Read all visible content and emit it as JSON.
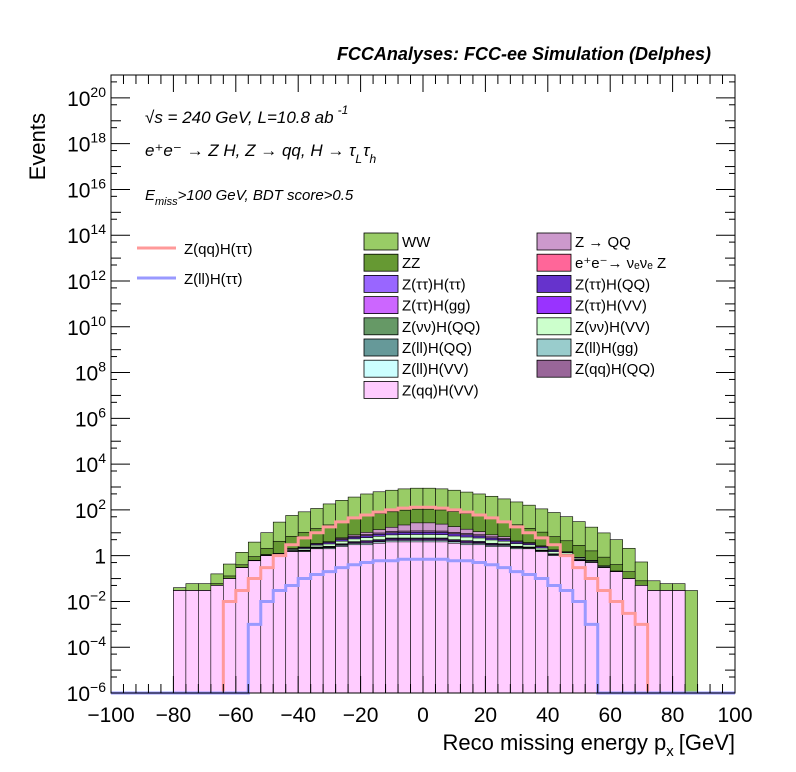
{
  "chart_data": {
    "type": "stacked-histogram",
    "title": "FCCAnalyses: FCC-ee Simulation (Delphes)",
    "xlabel": "Reco missing energy p",
    "xlabel_sub": "x",
    "xlabel_unit": "[GeV]",
    "ylabel": "Events",
    "xlim": [
      -100,
      100
    ],
    "ylim": [
      1e-06,
      1e+21
    ],
    "log_y": true,
    "x_ticks": [
      -100,
      -80,
      -60,
      -40,
      -20,
      0,
      20,
      40,
      60,
      80,
      100
    ],
    "x_tick_labels": [
      "−100",
      "−80",
      "−60",
      "−40",
      "−20",
      "0",
      "20",
      "40",
      "60",
      "80",
      "100"
    ],
    "y_ticks": [
      {
        "v": 1e-06,
        "base": "10",
        "exp": "−6"
      },
      {
        "v": 0.0001,
        "base": "10",
        "exp": "−4"
      },
      {
        "v": 0.01,
        "base": "10",
        "exp": "−2"
      },
      {
        "v": 1,
        "base": "1",
        "exp": ""
      },
      {
        "v": 100.0,
        "base": "10",
        "exp": "2"
      },
      {
        "v": 10000.0,
        "base": "10",
        "exp": "4"
      },
      {
        "v": 1000000.0,
        "base": "10",
        "exp": "6"
      },
      {
        "v": 100000000.0,
        "base": "10",
        "exp": "8"
      },
      {
        "v": 10000000000.0,
        "base": "10",
        "exp": "10"
      },
      {
        "v": 1000000000000.0,
        "base": "10",
        "exp": "12"
      },
      {
        "v": 100000000000000.0,
        "base": "10",
        "exp": "14"
      },
      {
        "v": 1e+16,
        "base": "10",
        "exp": "16"
      },
      {
        "v": 1e+18,
        "base": "10",
        "exp": "18"
      },
      {
        "v": 1e+20,
        "base": "10",
        "exp": "20"
      }
    ],
    "annotations": {
      "sqrt_s": "√s = 240 GeV, L=10.8 ab",
      "lumi_exp": "-1",
      "process": "e⁺e⁻ → Z H, Z  → qq, H  → τ",
      "process_sub1": "L",
      "process_tau2": "τ",
      "process_sub2": "h",
      "cut_e": "E",
      "cut_sub": "miss",
      "cut_rest": ">100 GeV, BDT score>0.5"
    },
    "legend": {
      "placement": "top",
      "signal": [
        {
          "name": "Z(qq)H(ττ)",
          "color": "#ff9999"
        },
        {
          "name": "Z(ll)H(ττ)",
          "color": "#9999ff"
        }
      ],
      "col1": [
        {
          "name": "WW",
          "color": "#99cc66"
        },
        {
          "name": "ZZ",
          "color": "#669933"
        },
        {
          "name": "Z(ττ)H(ττ)",
          "color": "#9966ff"
        },
        {
          "name": "Z(ττ)H(gg)",
          "color": "#cc66ff"
        },
        {
          "name": "Z(νν)H(QQ)",
          "color": "#669966"
        },
        {
          "name": "Z(ll)H(QQ)",
          "color": "#669999"
        },
        {
          "name": "Z(ll)H(VV)",
          "color": "#ccffff"
        },
        {
          "name": "Z(qq)H(VV)",
          "color": "#ffccff"
        }
      ],
      "col2": [
        {
          "name": "Z → QQ",
          "color": "#cc99cc"
        },
        {
          "name": "e⁺e⁻→ νₑνₑ Z",
          "color": "#ff6699"
        },
        {
          "name": "Z(ττ)H(QQ)",
          "color": "#6633cc"
        },
        {
          "name": "Z(ττ)H(VV)",
          "color": "#9933ff"
        },
        {
          "name": "Z(νν)H(VV)",
          "color": "#ccffcc"
        },
        {
          "name": "Z(ll)H(gg)",
          "color": "#99cccc"
        },
        {
          "name": "Z(qq)H(QQ)",
          "color": "#996699"
        }
      ]
    },
    "bin_edges": [
      -100,
      -96,
      -92,
      -88,
      -84,
      -80,
      -76,
      -72,
      -68,
      -64,
      -60,
      -56,
      -52,
      -48,
      -44,
      -40,
      -36,
      -32,
      -28,
      -24,
      -20,
      -16,
      -12,
      -8,
      -4,
      0,
      4,
      8,
      12,
      16,
      20,
      24,
      28,
      32,
      36,
      40,
      44,
      48,
      52,
      56,
      60,
      64,
      68,
      72,
      76,
      80,
      84,
      88,
      92,
      96,
      100
    ],
    "stack_totals": [
      0,
      0,
      0,
      0,
      0,
      0,
      0.03,
      0.03,
      0.1,
      0.3,
      1,
      3,
      10,
      30,
      55,
      80,
      120,
      180,
      260,
      360,
      500,
      620,
      720,
      820,
      880,
      880,
      820,
      720,
      600,
      500,
      400,
      300,
      220,
      160,
      110,
      75,
      50,
      30,
      18,
      10,
      5,
      2,
      0.5,
      0.05,
      0.03,
      0.03,
      0,
      0,
      0,
      0
    ],
    "layers": [
      {
        "name": "Z(qq)H(VV)",
        "color": "#ffccff",
        "values": [
          0,
          0,
          0,
          0,
          0,
          0.03,
          0.03,
          0.03,
          0.05,
          0.1,
          0.3,
          0.6,
          1,
          1,
          1.5,
          1.5,
          2,
          2,
          2.5,
          3,
          3,
          3.5,
          4,
          4,
          4,
          4,
          4,
          3.5,
          3,
          3,
          2.5,
          2.5,
          2,
          2,
          1.5,
          1,
          1,
          0.6,
          0.5,
          0.3,
          0.2,
          0.1,
          0.05,
          0.03,
          0.03,
          0.03,
          0,
          0,
          0,
          0
        ]
      },
      {
        "name": "Z(ll)H(VV)",
        "color": "#ccffff",
        "values": [
          0,
          0,
          0,
          0,
          0,
          0,
          0,
          0,
          0,
          0,
          0,
          0.01,
          0.03,
          0.05,
          0.08,
          0.1,
          0.15,
          0.2,
          0.3,
          0.4,
          0.5,
          0.5,
          0.6,
          0.6,
          0.6,
          0.6,
          0.6,
          0.5,
          0.5,
          0.4,
          0.3,
          0.3,
          0.2,
          0.15,
          0.1,
          0.08,
          0.05,
          0.03,
          0.02,
          0.01,
          0,
          0,
          0,
          0,
          0,
          0,
          0,
          0,
          0,
          0
        ]
      },
      {
        "name": "Z(ττ)H(gg)",
        "color": "#cc66ff",
        "values": [
          0,
          0,
          0,
          0,
          0,
          0,
          0,
          0,
          0,
          0,
          0,
          0,
          0.01,
          0.02,
          0.03,
          0.05,
          0.08,
          0.1,
          0.15,
          0.2,
          0.3,
          0.3,
          0.4,
          0.4,
          0.4,
          0.4,
          0.4,
          0.3,
          0.3,
          0.25,
          0.2,
          0.15,
          0.1,
          0.08,
          0.05,
          0.04,
          0.03,
          0.02,
          0.01,
          0.01,
          0,
          0,
          0,
          0,
          0,
          0,
          0,
          0,
          0,
          0
        ]
      },
      {
        "name": "Z(ττ)H(VV)",
        "color": "#9933ff",
        "values": [
          0,
          0,
          0,
          0,
          0,
          0,
          0,
          0,
          0,
          0,
          0,
          0,
          0.01,
          0.02,
          0.04,
          0.06,
          0.1,
          0.15,
          0.2,
          0.3,
          0.4,
          0.4,
          0.5,
          0.5,
          0.5,
          0.5,
          0.5,
          0.4,
          0.4,
          0.3,
          0.25,
          0.2,
          0.15,
          0.1,
          0.07,
          0.05,
          0.03,
          0.02,
          0.01,
          0.01,
          0,
          0,
          0,
          0,
          0,
          0,
          0,
          0,
          0,
          0
        ]
      },
      {
        "name": "Z(ττ)H(ττ)",
        "color": "#9966ff",
        "values": [
          0,
          0,
          0,
          0,
          0,
          0,
          0,
          0,
          0,
          0,
          0,
          0,
          0,
          0.01,
          0.02,
          0.04,
          0.06,
          0.1,
          0.15,
          0.2,
          0.3,
          0.3,
          0.4,
          0.4,
          0.4,
          0.4,
          0.4,
          0.3,
          0.3,
          0.25,
          0.2,
          0.15,
          0.1,
          0.06,
          0.04,
          0.03,
          0.02,
          0.01,
          0,
          0,
          0,
          0,
          0,
          0,
          0,
          0,
          0,
          0,
          0,
          0
        ]
      },
      {
        "name": "Z(νν)H(VV)",
        "color": "#ccffcc",
        "values": [
          0,
          0,
          0,
          0,
          0,
          0,
          0,
          0,
          0,
          0,
          0,
          0,
          0.05,
          0.1,
          0.2,
          0.3,
          0.5,
          0.7,
          1,
          1.3,
          1.6,
          2,
          2.2,
          2.4,
          2.5,
          2.5,
          2.4,
          2.2,
          2,
          1.7,
          1.4,
          1,
          0.8,
          0.6,
          0.4,
          0.3,
          0.2,
          0.1,
          0.05,
          0.03,
          0.01,
          0,
          0,
          0,
          0,
          0,
          0,
          0,
          0,
          0
        ]
      },
      {
        "name": "Z(ττ)H(QQ)",
        "color": "#6633cc",
        "values": [
          0,
          0,
          0,
          0,
          0,
          0,
          0,
          0,
          0,
          0,
          0,
          0,
          0,
          0.05,
          0.1,
          0.2,
          0.3,
          0.5,
          0.7,
          1,
          1.3,
          1.6,
          1.8,
          2,
          2,
          2,
          2,
          1.8,
          1.6,
          1.3,
          1,
          0.8,
          0.6,
          0.4,
          0.3,
          0.2,
          0.1,
          0.05,
          0.03,
          0,
          0,
          0,
          0,
          0,
          0,
          0,
          0,
          0,
          0,
          0
        ]
      },
      {
        "name": "Z(qq)H(QQ)",
        "color": "#996699",
        "values": [
          0,
          0,
          0,
          0,
          0,
          0,
          0,
          0,
          0,
          0,
          0,
          0,
          0,
          0,
          0.05,
          0.1,
          0.2,
          0.3,
          0.5,
          0.7,
          1,
          1.2,
          1.5,
          1.6,
          1.7,
          1.7,
          1.6,
          1.5,
          1.2,
          1,
          0.8,
          0.6,
          0.4,
          0.3,
          0.2,
          0.1,
          0.05,
          0,
          0,
          0,
          0,
          0,
          0,
          0,
          0,
          0,
          0,
          0,
          0,
          0
        ]
      },
      {
        "name": "Z → QQ",
        "color": "#cc99cc",
        "values": [
          0,
          0,
          0,
          0,
          0,
          0,
          0,
          0,
          0,
          0,
          0,
          0,
          0,
          0,
          0,
          0,
          0,
          0,
          0.5,
          1,
          2,
          4,
          6,
          10,
          15,
          15,
          12,
          8,
          5,
          3,
          1.5,
          1,
          0,
          0,
          0,
          0,
          0,
          0,
          0,
          0,
          0,
          0,
          0,
          0,
          0,
          0,
          0,
          0,
          0,
          0
        ]
      },
      {
        "name": "ZZ",
        "color": "#669933",
        "values": [
          0,
          0,
          0,
          0,
          0,
          0,
          0,
          0,
          0.01,
          0.03,
          0.1,
          0.3,
          1,
          3,
          5,
          8,
          12,
          18,
          25,
          35,
          45,
          55,
          65,
          75,
          80,
          80,
          75,
          65,
          55,
          45,
          35,
          25,
          18,
          12,
          8,
          5,
          3,
          2,
          1,
          0.5,
          0.2,
          0.1,
          0.03,
          0,
          0,
          0,
          0,
          0,
          0,
          0
        ]
      },
      {
        "name": "WW",
        "color": "#99cc66",
        "values": [
          0,
          0,
          0,
          0,
          0,
          0.01,
          0.03,
          0.03,
          0.1,
          0.3,
          1,
          3,
          8,
          25,
          50,
          72,
          100,
          160,
          230,
          320,
          440,
          550,
          640,
          730,
          780,
          780,
          730,
          640,
          530,
          440,
          350,
          270,
          200,
          145,
          100,
          70,
          46,
          28,
          16,
          9,
          4.6,
          1.9,
          0.45,
          0.05,
          0.03,
          0.03,
          0.03,
          0,
          0,
          0
        ]
      }
    ],
    "signal_lines": [
      {
        "name": "Z(qq)H(ττ)",
        "color": "#ff9999",
        "values": [
          0,
          0,
          0,
          0,
          0,
          0,
          0,
          0,
          0,
          0.01,
          0.03,
          0.1,
          0.3,
          1,
          3,
          6,
          10,
          18,
          30,
          45,
          60,
          80,
          100,
          120,
          130,
          130,
          120,
          100,
          80,
          60,
          45,
          30,
          18,
          10,
          6,
          3,
          1,
          0.3,
          0.1,
          0.03,
          0.01,
          0.003,
          0.001,
          0,
          0,
          0,
          0,
          0,
          0,
          0
        ]
      },
      {
        "name": "Z(ll)H(ττ)",
        "color": "#9999ff",
        "values": [
          0,
          0,
          0,
          0,
          0,
          0,
          0,
          0,
          0,
          0,
          0,
          0.001,
          0.01,
          0.03,
          0.05,
          0.1,
          0.15,
          0.2,
          0.3,
          0.4,
          0.5,
          0.6,
          0.6,
          0.7,
          0.7,
          0.7,
          0.7,
          0.6,
          0.6,
          0.5,
          0.4,
          0.3,
          0.2,
          0.15,
          0.1,
          0.05,
          0.03,
          0.01,
          0.001,
          0,
          0,
          0,
          0,
          0,
          0,
          0,
          0,
          0,
          0,
          0
        ]
      }
    ]
  }
}
